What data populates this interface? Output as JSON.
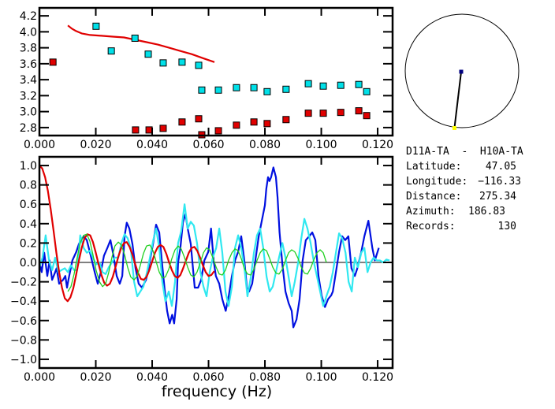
{
  "chart_data": [
    {
      "type": "scatter",
      "title": "",
      "xlabel": "",
      "ylabel": "",
      "xlim": [
        0.0,
        0.1253
      ],
      "ylim": [
        2.7,
        4.3
      ],
      "xticks": [
        "0.000",
        "0.020",
        "0.040",
        "0.060",
        "0.080",
        "0.100",
        "0.120"
      ],
      "xtick_values": [
        0.0,
        0.02,
        0.04,
        0.06,
        0.08,
        0.1,
        0.12
      ],
      "yticks": [
        "2.8",
        "3.0",
        "3.2",
        "3.4",
        "3.6",
        "3.8",
        "4.0",
        "4.2"
      ],
      "ytick_values": [
        2.8,
        3.0,
        3.2,
        3.4,
        3.6,
        3.8,
        4.0,
        4.2
      ],
      "series": [
        {
          "name": "cyan-points",
          "color": "#00e0e8",
          "marker": "square",
          "x": [
            0.0201,
            0.0255,
            0.0339,
            0.0386,
            0.0439,
            0.0506,
            0.0565,
            0.0576,
            0.0635,
            0.0699,
            0.0761,
            0.0808,
            0.0875,
            0.0954,
            0.1007,
            0.1069,
            0.1133,
            0.1161
          ],
          "y": [
            4.07,
            3.76,
            3.92,
            3.72,
            3.61,
            3.62,
            3.58,
            3.27,
            3.27,
            3.3,
            3.3,
            3.25,
            3.28,
            3.35,
            3.32,
            3.33,
            3.34,
            3.25
          ]
        },
        {
          "name": "red-points",
          "color": "#e00000",
          "marker": "square",
          "x": [
            0.0048,
            0.0341,
            0.0389,
            0.0439,
            0.0506,
            0.0565,
            0.0576,
            0.0635,
            0.0699,
            0.0761,
            0.0808,
            0.0875,
            0.0954,
            0.1007,
            0.1069,
            0.1133,
            0.1161
          ],
          "y": [
            3.62,
            2.77,
            2.77,
            2.79,
            2.87,
            2.91,
            2.71,
            2.76,
            2.83,
            2.87,
            2.85,
            2.9,
            2.98,
            2.98,
            2.99,
            3.01,
            2.95
          ]
        },
        {
          "name": "red-curve",
          "color": "#e00000",
          "type": "line",
          "x": [
            0.0101,
            0.0115,
            0.013,
            0.015,
            0.018,
            0.022,
            0.026,
            0.03,
            0.034,
            0.038,
            0.042,
            0.046,
            0.05,
            0.054,
            0.058,
            0.0621
          ],
          "y": [
            4.08,
            4.04,
            4.01,
            3.98,
            3.96,
            3.95,
            3.94,
            3.93,
            3.9,
            3.87,
            3.84,
            3.8,
            3.76,
            3.72,
            3.67,
            3.62
          ]
        }
      ]
    },
    {
      "type": "line",
      "title": "",
      "xlabel": "frequency (Hz)",
      "ylabel": "",
      "xlim": [
        0.0,
        0.1253
      ],
      "ylim": [
        -1.09,
        1.09
      ],
      "xticks": [
        "0.000",
        "0.020",
        "0.040",
        "0.060",
        "0.080",
        "0.100",
        "0.120"
      ],
      "xtick_values": [
        0.0,
        0.02,
        0.04,
        0.06,
        0.08,
        0.1,
        0.12
      ],
      "yticks": [
        "1.0",
        "0.8",
        "0.6",
        "0.4",
        "0.2",
        "0.0",
        "−0.2",
        "−0.4",
        "−0.6",
        "−0.8",
        "−1.0"
      ],
      "ytick_values": [
        1.0,
        0.8,
        0.6,
        0.4,
        0.2,
        0.0,
        -0.2,
        -0.4,
        -0.6,
        -0.8,
        -1.0
      ],
      "zero_line": true,
      "series": [
        {
          "name": "blue-observed",
          "color": "#0010e0",
          "x": [
            0.0,
            0.0008,
            0.0017,
            0.0028,
            0.0036,
            0.0045,
            0.0056,
            0.0061,
            0.007,
            0.0084,
            0.0092,
            0.0098,
            0.0103,
            0.0117,
            0.0131,
            0.014,
            0.0148,
            0.0157,
            0.0168,
            0.0182,
            0.0196,
            0.0207,
            0.0218,
            0.0229,
            0.0241,
            0.0252,
            0.0263,
            0.0274,
            0.0285,
            0.0294,
            0.0302,
            0.031,
            0.0319,
            0.033,
            0.0341,
            0.0352,
            0.0364,
            0.0378,
            0.0392,
            0.0403,
            0.0414,
            0.0425,
            0.0434,
            0.0445,
            0.0453,
            0.0462,
            0.0471,
            0.0478,
            0.0487,
            0.0492,
            0.05,
            0.0509,
            0.0518,
            0.0526,
            0.0537,
            0.0543,
            0.0551,
            0.0563,
            0.0574,
            0.0585,
            0.0599,
            0.0609,
            0.0618,
            0.0626,
            0.0638,
            0.0649,
            0.0661,
            0.0672,
            0.0683,
            0.0694,
            0.0705,
            0.0716,
            0.0727,
            0.0736,
            0.0744,
            0.0755,
            0.0766,
            0.0778,
            0.0789,
            0.08,
            0.0805,
            0.0811,
            0.0816,
            0.0822,
            0.083,
            0.0839,
            0.0845,
            0.0852,
            0.0862,
            0.0873,
            0.0884,
            0.0895,
            0.0901,
            0.0912,
            0.0923,
            0.0934,
            0.0945,
            0.0957,
            0.0968,
            0.0979,
            0.099,
            0.1001,
            0.1013,
            0.1024,
            0.1035,
            0.1041,
            0.1052,
            0.1063,
            0.1074,
            0.1085,
            0.1096,
            0.1107,
            0.1119,
            0.1128,
            0.1142,
            0.1153,
            0.1167,
            0.1181,
            0.119,
            0.1204
          ],
          "y": [
            0.0,
            -0.1,
            0.1,
            -0.14,
            0.02,
            -0.18,
            -0.1,
            -0.06,
            -0.22,
            -0.18,
            -0.14,
            -0.26,
            -0.18,
            0.02,
            0.11,
            0.19,
            0.23,
            0.27,
            0.23,
            0.07,
            -0.1,
            -0.22,
            -0.1,
            0.07,
            0.15,
            0.23,
            0.07,
            -0.14,
            -0.22,
            -0.14,
            0.27,
            0.41,
            0.35,
            0.19,
            -0.06,
            -0.22,
            -0.26,
            -0.18,
            0.02,
            0.19,
            0.39,
            0.31,
            0.02,
            -0.3,
            -0.5,
            -0.63,
            -0.54,
            -0.63,
            -0.38,
            0.0,
            0.15,
            0.41,
            0.5,
            0.35,
            0.19,
            0.0,
            -0.26,
            -0.26,
            -0.18,
            0.02,
            0.11,
            0.35,
            0.02,
            -0.14,
            -0.22,
            -0.38,
            -0.5,
            -0.34,
            -0.14,
            0.02,
            0.11,
            0.27,
            0.02,
            -0.26,
            -0.3,
            -0.22,
            0.02,
            0.27,
            0.43,
            0.59,
            0.76,
            0.88,
            0.84,
            0.88,
            0.98,
            0.88,
            0.67,
            0.31,
            -0.02,
            -0.3,
            -0.42,
            -0.5,
            -0.67,
            -0.59,
            -0.38,
            0.02,
            0.23,
            0.27,
            0.31,
            0.23,
            -0.14,
            -0.34,
            -0.46,
            -0.38,
            -0.34,
            -0.3,
            -0.1,
            0.11,
            0.27,
            0.23,
            0.27,
            -0.06,
            -0.14,
            -0.06,
            0.11,
            0.27,
            0.43,
            0.15,
            0.02,
            0.15
          ]
        },
        {
          "name": "cyan-observed",
          "color": "#30e8f0",
          "x": [
            0.0,
            0.0011,
            0.0022,
            0.0034,
            0.0045,
            0.0056,
            0.0067,
            0.0078,
            0.009,
            0.0101,
            0.0112,
            0.0123,
            0.0134,
            0.0145,
            0.0157,
            0.0168,
            0.0179,
            0.019,
            0.0201,
            0.0213,
            0.0224,
            0.0235,
            0.0246,
            0.0257,
            0.0268,
            0.028,
            0.0291,
            0.0302,
            0.0313,
            0.0324,
            0.0336,
            0.0347,
            0.0358,
            0.0369,
            0.038,
            0.0392,
            0.0403,
            0.0414,
            0.0425,
            0.0436,
            0.0447,
            0.0459,
            0.047,
            0.0481,
            0.0492,
            0.0503,
            0.0515,
            0.0526,
            0.0537,
            0.0548,
            0.0559,
            0.0571,
            0.0582,
            0.0593,
            0.0604,
            0.0615,
            0.0627,
            0.0638,
            0.0649,
            0.066,
            0.0671,
            0.0683,
            0.0694,
            0.0705,
            0.0716,
            0.0727,
            0.0738,
            0.075,
            0.0761,
            0.0772,
            0.0783,
            0.0794,
            0.0806,
            0.0817,
            0.0828,
            0.0839,
            0.085,
            0.0862,
            0.0873,
            0.0884,
            0.0895,
            0.0906,
            0.0918,
            0.0929,
            0.094,
            0.0951,
            0.0962,
            0.0974,
            0.0985,
            0.0996,
            0.1007,
            0.1018,
            0.103,
            0.1041,
            0.1052,
            0.1063,
            0.1074,
            0.1086,
            0.1097,
            0.1108,
            0.1119,
            0.113,
            0.1142,
            0.1153,
            0.1164,
            0.1175,
            0.1186,
            0.1197,
            0.1208,
            0.122,
            0.1231,
            0.1242
          ],
          "y": [
            -0.05,
            0.05,
            0.28,
            0.02,
            -0.08,
            0.05,
            -0.1,
            -0.08,
            -0.06,
            -0.1,
            -0.03,
            -0.08,
            -0.08,
            0.28,
            0.15,
            0.1,
            0.12,
            0.05,
            -0.02,
            0.0,
            -0.1,
            -0.12,
            -0.05,
            0.0,
            0.05,
            0.05,
            0.2,
            0.29,
            0.25,
            0.15,
            -0.2,
            -0.35,
            -0.3,
            -0.25,
            -0.12,
            0.05,
            0.22,
            0.35,
            0.15,
            -0.2,
            -0.4,
            -0.3,
            -0.45,
            -0.2,
            0.2,
            0.32,
            0.6,
            0.35,
            0.42,
            0.38,
            0.2,
            -0.1,
            -0.25,
            -0.35,
            -0.1,
            0.05,
            0.15,
            0.35,
            0.1,
            -0.3,
            -0.45,
            -0.25,
            0.15,
            0.28,
            0.15,
            -0.05,
            -0.35,
            -0.15,
            0.1,
            0.28,
            0.35,
            0.15,
            -0.15,
            -0.3,
            -0.25,
            -0.1,
            0.05,
            0.2,
            0.05,
            -0.15,
            -0.35,
            -0.2,
            0.0,
            0.25,
            0.45,
            0.35,
            0.2,
            0.0,
            -0.15,
            -0.3,
            -0.45,
            -0.35,
            -0.25,
            -0.1,
            0.1,
            0.3,
            0.25,
            0.1,
            -0.2,
            -0.3,
            0.05,
            -0.05,
            0.1,
            0.15,
            -0.1,
            0.0,
            0.05,
            0.02,
            0.02,
            0.0,
            0.03,
            0.02
          ]
        },
        {
          "name": "red-model",
          "color": "#e00000",
          "x": [
            0.0,
            0.001,
            0.002,
            0.003,
            0.004,
            0.005,
            0.006,
            0.007,
            0.008,
            0.009,
            0.01,
            0.011,
            0.012,
            0.013,
            0.014,
            0.015,
            0.016,
            0.017,
            0.018,
            0.019,
            0.02,
            0.021,
            0.022,
            0.023,
            0.024,
            0.025,
            0.026,
            0.027,
            0.028,
            0.029,
            0.03,
            0.031,
            0.032,
            0.033,
            0.034,
            0.035,
            0.036,
            0.037,
            0.038,
            0.039,
            0.04,
            0.041,
            0.042,
            0.043,
            0.044,
            0.045,
            0.046,
            0.047,
            0.048,
            0.049,
            0.05,
            0.051,
            0.052,
            0.053,
            0.054,
            0.055,
            0.056,
            0.057,
            0.058,
            0.059,
            0.06,
            0.061,
            0.062
          ],
          "y": [
            1.0,
            0.97,
            0.88,
            0.74,
            0.55,
            0.33,
            0.1,
            -0.1,
            -0.26,
            -0.37,
            -0.4,
            -0.36,
            -0.27,
            -0.13,
            0.02,
            0.15,
            0.25,
            0.29,
            0.28,
            0.21,
            0.1,
            -0.02,
            -0.13,
            -0.21,
            -0.24,
            -0.22,
            -0.15,
            -0.05,
            0.06,
            0.15,
            0.2,
            0.21,
            0.16,
            0.08,
            -0.02,
            -0.11,
            -0.17,
            -0.18,
            -0.15,
            -0.08,
            0.01,
            0.1,
            0.16,
            0.18,
            0.16,
            0.09,
            0.0,
            -0.08,
            -0.14,
            -0.16,
            -0.13,
            -0.06,
            0.02,
            0.1,
            0.15,
            0.16,
            0.12,
            0.05,
            -0.03,
            -0.1,
            -0.14,
            -0.13,
            -0.09
          ]
        },
        {
          "name": "green-model",
          "color": "#20d020",
          "x": [
            0.0101,
            0.0112,
            0.0123,
            0.0134,
            0.0145,
            0.0157,
            0.0168,
            0.0179,
            0.019,
            0.0201,
            0.0213,
            0.0224,
            0.0235,
            0.0246,
            0.0257,
            0.0268,
            0.028,
            0.0291,
            0.0302,
            0.0313,
            0.0324,
            0.0336,
            0.0347,
            0.0358,
            0.0369,
            0.038,
            0.0392,
            0.0403,
            0.0414,
            0.0425,
            0.0436,
            0.0447,
            0.0459,
            0.047,
            0.0481,
            0.0492,
            0.0503,
            0.0515,
            0.0526,
            0.0537,
            0.0548,
            0.0559,
            0.0571,
            0.0582,
            0.0593,
            0.0604,
            0.0615,
            0.0627,
            0.0638,
            0.0649,
            0.066,
            0.0671,
            0.0683,
            0.0694,
            0.0705,
            0.0716,
            0.0727,
            0.0738,
            0.075,
            0.0761,
            0.0772,
            0.0783,
            0.0794,
            0.0806,
            0.0817,
            0.0828,
            0.0839,
            0.085,
            0.0862,
            0.0873,
            0.0884,
            0.0895,
            0.0906,
            0.0918,
            0.0929,
            0.094,
            0.0951,
            0.0962,
            0.0974,
            0.0985,
            0.0996,
            0.1007,
            0.1018
          ],
          "y": [
            -0.3,
            -0.25,
            -0.12,
            0.05,
            0.2,
            0.28,
            0.29,
            0.22,
            0.08,
            -0.08,
            -0.2,
            -0.25,
            -0.22,
            -0.1,
            0.05,
            0.17,
            0.21,
            0.18,
            0.08,
            -0.05,
            -0.15,
            -0.18,
            -0.14,
            -0.03,
            0.09,
            0.17,
            0.18,
            0.12,
            0.01,
            -0.1,
            -0.16,
            -0.15,
            -0.07,
            0.04,
            0.13,
            0.17,
            0.14,
            0.05,
            -0.05,
            -0.13,
            -0.15,
            -0.1,
            0.0,
            0.1,
            0.15,
            0.13,
            0.05,
            -0.05,
            -0.12,
            -0.13,
            -0.08,
            0.02,
            0.1,
            0.14,
            0.12,
            0.04,
            -0.06,
            -0.12,
            -0.13,
            -0.07,
            0.02,
            0.1,
            0.14,
            0.12,
            0.04,
            -0.05,
            -0.11,
            -0.12,
            -0.07,
            0.02,
            0.1,
            0.13,
            0.11,
            0.04,
            -0.05,
            -0.11,
            -0.12,
            -0.06,
            0.03,
            0.1,
            0.13,
            0.1,
            0.0
          ]
        }
      ]
    }
  ],
  "station_map": {
    "center_marker_color": "#000080",
    "station_marker_color": "#ffff00",
    "azimuth_deg": 186.83,
    "relative_distance": 1.0
  },
  "info": {
    "pair": "D11A-TA  -  H10A-TA",
    "latitude_label": "Latitude:",
    "latitude": "47.05",
    "longitude_label": "Longitude:",
    "longitude": "−116.33",
    "distance_label": "Distance:",
    "distance": "275.34",
    "azimuth_label": "Azimuth:",
    "azimuth": "186.83",
    "records_label": "Records:",
    "records": "130"
  }
}
